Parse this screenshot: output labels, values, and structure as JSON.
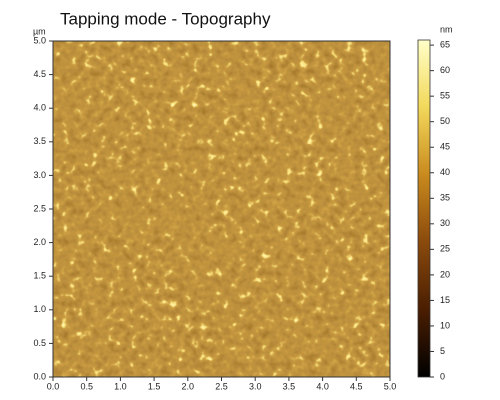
{
  "chart_data": {
    "type": "heatmap",
    "title": "Tapping mode - Topography",
    "y_unit": "µm",
    "colorbar_unit": "nm",
    "xlim": [
      0,
      5
    ],
    "xticks": [
      {
        "value": 0,
        "label": "0.0"
      },
      0.5,
      {
        "value": 1,
        "label": "1.0"
      },
      1.5,
      {
        "value": 2,
        "label": "2.0"
      },
      2.5,
      {
        "value": 3,
        "label": "3.0"
      },
      3.5,
      {
        "value": 4,
        "label": "4.0"
      },
      4.5,
      {
        "value": 5,
        "label": "5.0"
      }
    ],
    "ylim": [
      0,
      5
    ],
    "yticks": [
      {
        "value": 0,
        "label": "0.0"
      },
      0.5,
      {
        "value": 1,
        "label": "1.0"
      },
      1.5,
      {
        "value": 2,
        "label": "2.0"
      },
      2.5,
      {
        "value": 3,
        "label": "3.0"
      },
      3.5,
      {
        "value": 4,
        "label": "4.0"
      },
      4.5,
      {
        "value": 5,
        "label": "5.0"
      }
    ],
    "clim": [
      0,
      66
    ],
    "cticks": [
      0,
      5,
      10,
      15,
      20,
      25,
      30,
      35,
      40,
      45,
      50,
      55,
      60,
      65
    ],
    "colormap": [
      "#000000",
      "#4a1e02",
      "#8a4a0c",
      "#c98a1e",
      "#f2d85a",
      "#ffffc8"
    ]
  }
}
